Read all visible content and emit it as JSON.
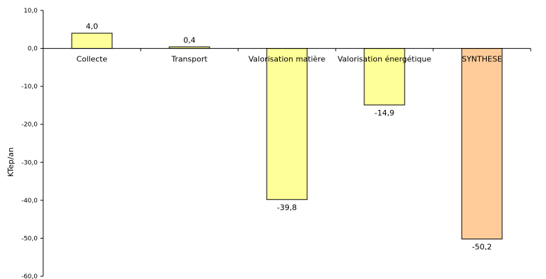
{
  "chart_data": {
    "type": "bar",
    "title": "",
    "xlabel": "",
    "ylabel": "KTep/an",
    "ylim": [
      -60,
      10
    ],
    "yticks": [
      10,
      0,
      -10,
      -20,
      -30,
      -40,
      -50,
      -60
    ],
    "ytick_labels": [
      "10,0",
      "0,0",
      "-10,0",
      "-20,0",
      "-30,0",
      "-40,0",
      "-50,0",
      "-60,0"
    ],
    "grid": false,
    "legend": "none",
    "categories": [
      "Collecte",
      "Transport",
      "Valorisation matière",
      "Valorisation énergétique",
      "SYNTHESE"
    ],
    "values": [
      4.0,
      0.4,
      -39.8,
      -14.9,
      -50.2
    ],
    "value_labels": [
      "4,0",
      "0,4",
      "-39,8",
      "-14,9",
      "-50,2"
    ],
    "bar_colors": [
      "#FFFF99",
      "#FFFF99",
      "#FFFF99",
      "#FFFF99",
      "#FFCC99"
    ],
    "bar_outline_color": "#000000"
  }
}
